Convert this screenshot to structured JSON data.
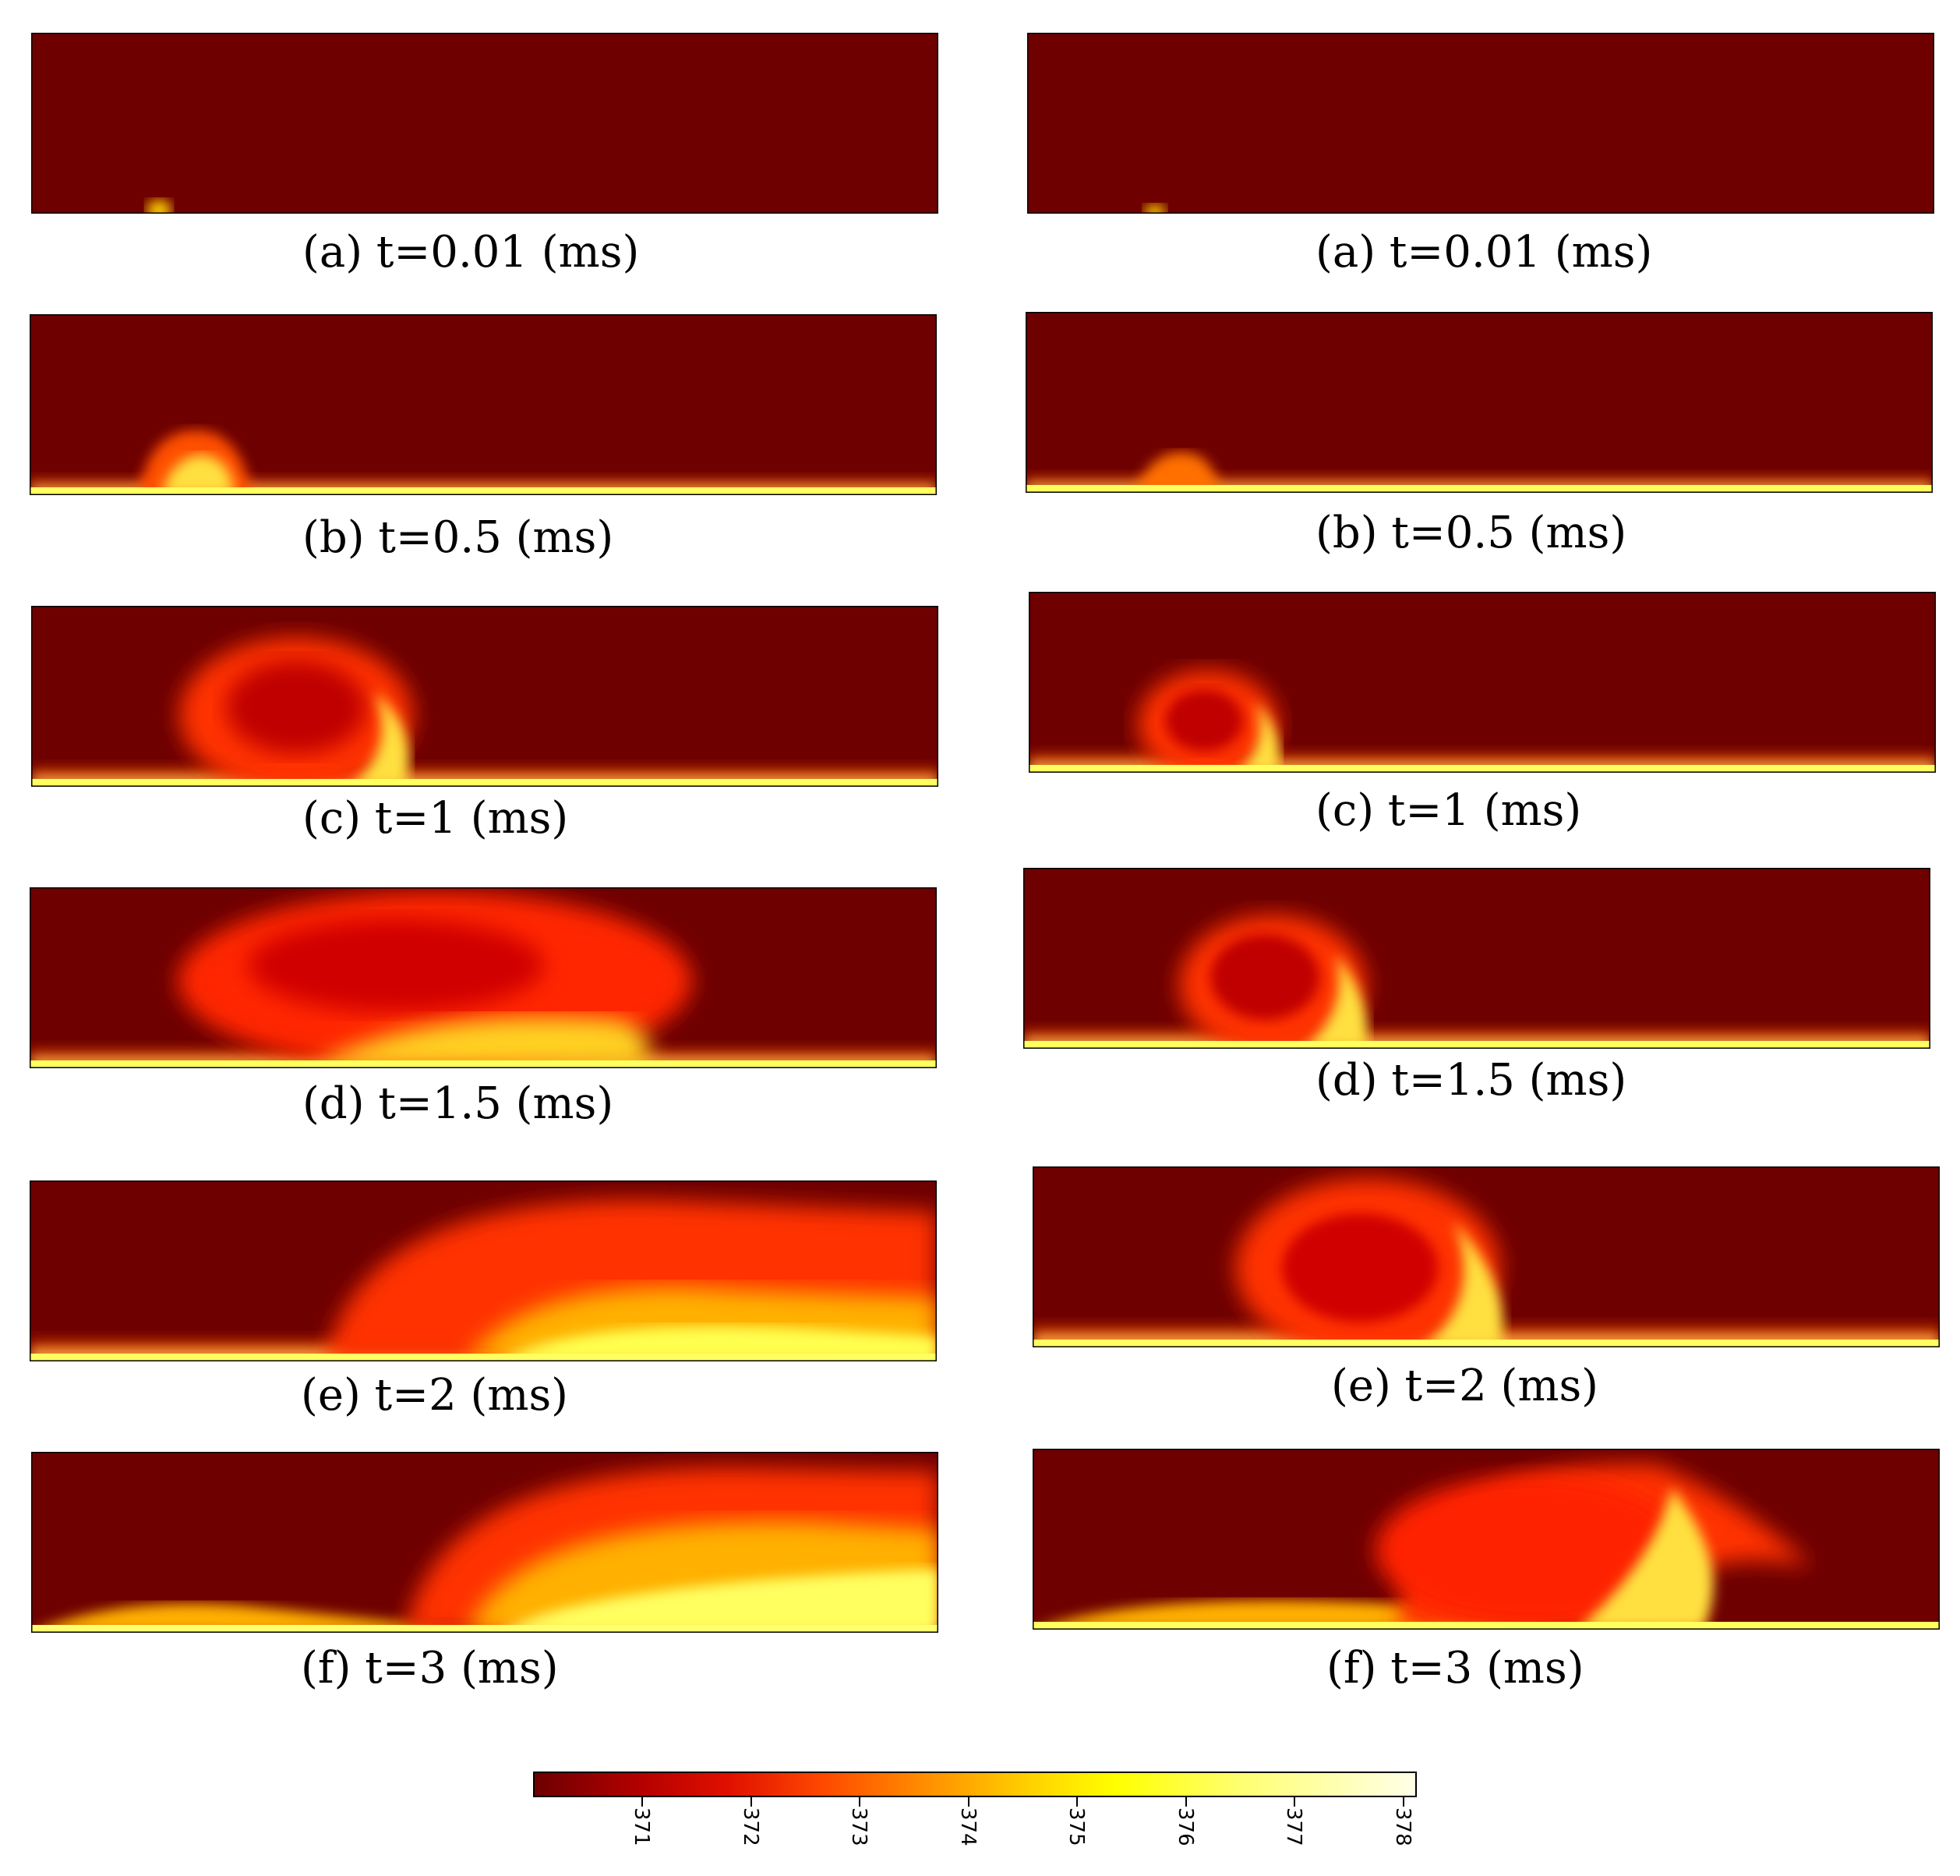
{
  "colors": {
    "background_field": "#6e0000",
    "hot_layer": "#ffff40",
    "mid": "#ff3000"
  },
  "columns": [
    {
      "panels": [
        {
          "caption": "(a) t=0.01 (ms)"
        },
        {
          "caption": "(b) t=0.5 (ms)"
        },
        {
          "caption": "(c) t=1 (ms)"
        },
        {
          "caption": "(d) t=1.5 (ms)"
        },
        {
          "caption": "(e) t=2 (ms)"
        },
        {
          "caption": "(f) t=3 (ms)"
        }
      ]
    },
    {
      "panels": [
        {
          "caption": "(a) t=0.01 (ms)"
        },
        {
          "caption": "(b) t=0.5 (ms)"
        },
        {
          "caption": "(c) t=1 (ms)"
        },
        {
          "caption": "(d) t=1.5 (ms)"
        },
        {
          "caption": "(e) t=2 (ms)"
        },
        {
          "caption": "(f) t=3 (ms)"
        }
      ]
    }
  ],
  "colorbar": {
    "ticks": [
      "371",
      "372",
      "373",
      "374",
      "375",
      "376",
      "377",
      "378"
    ]
  }
}
